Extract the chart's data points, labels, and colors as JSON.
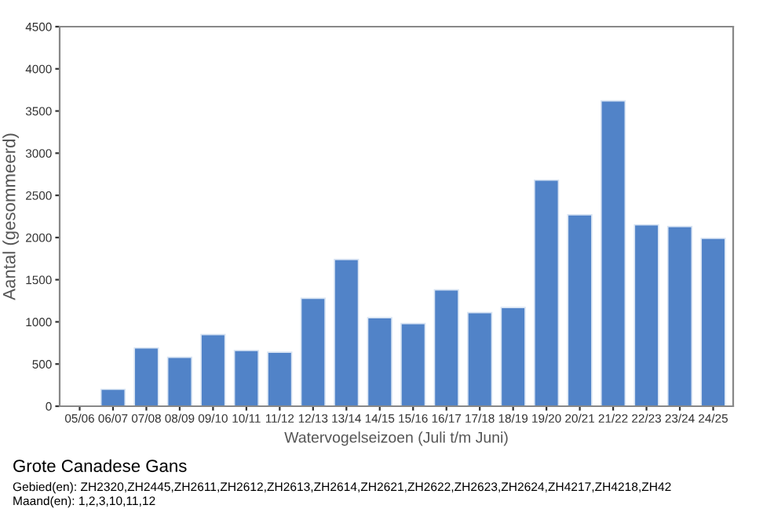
{
  "chart_data": {
    "type": "bar",
    "title": "Grote Canadese Gans",
    "xlabel": "Watervogelseizoen (Juli t/m Juni)",
    "ylabel": "Aantal (gesommeerd)",
    "categories": [
      "05/06",
      "06/07",
      "07/08",
      "08/09",
      "09/10",
      "10/11",
      "11/12",
      "12/13",
      "13/14",
      "14/15",
      "15/16",
      "16/17",
      "17/18",
      "18/19",
      "19/20",
      "20/21",
      "21/22",
      "22/23",
      "23/24",
      "24/25"
    ],
    "values": [
      null,
      200,
      690,
      580,
      850,
      660,
      640,
      1280,
      1740,
      1050,
      980,
      1380,
      1110,
      1170,
      2680,
      2270,
      3620,
      2150,
      2130,
      1990
    ],
    "color": "#5183c8",
    "ylim": [
      0,
      4500
    ],
    "yticks": [
      0,
      500,
      1000,
      1500,
      2000,
      2500,
      3000,
      3500,
      4000,
      4500
    ],
    "grid": false,
    "legend": false,
    "annotations": [
      "Gebied(en): ZH2320,ZH2445,ZH2611,ZH2612,ZH2613,ZH2614,ZH2621,ZH2622,ZH2623,ZH2624,ZH4217,ZH4218,ZH42",
      "Maand(en): 1,2,3,10,11,12"
    ]
  }
}
